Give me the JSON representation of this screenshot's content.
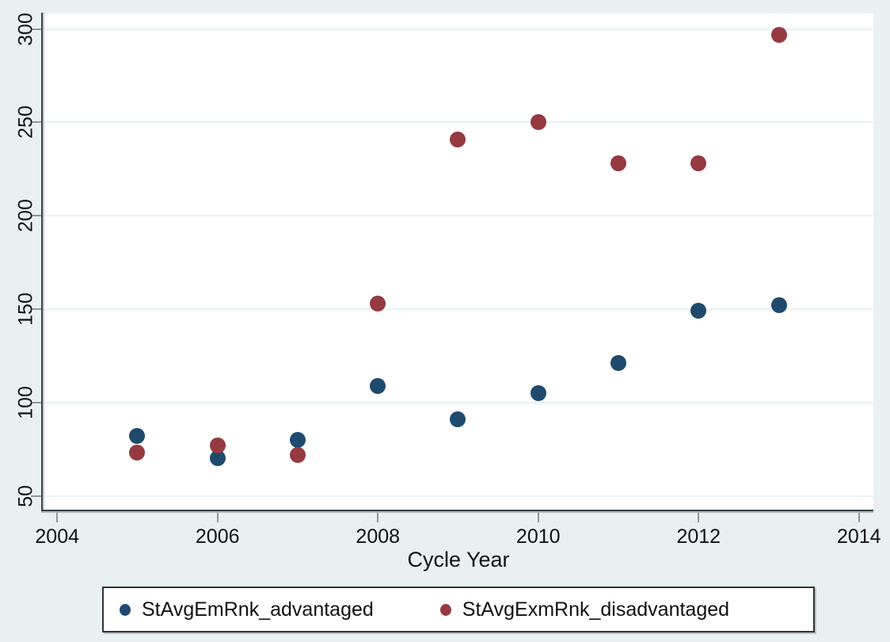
{
  "figure": {
    "background_color": "#e9f0f2",
    "plot_background_color": "#ffffff",
    "gridline_color": "#e8f1f3",
    "axis_color": "#3e4447",
    "tick_color": "#8f9698"
  },
  "chart_data": {
    "type": "scatter",
    "title": "",
    "xlabel": "Cycle Year",
    "ylabel": "",
    "x": [
      2005,
      2006,
      2007,
      2008,
      2009,
      2010,
      2011,
      2012,
      2013
    ],
    "series": [
      {
        "name": "StAvgEmRnk_advantaged",
        "color": "#1f4a6e",
        "values": [
          82,
          70,
          80,
          109,
          91,
          105,
          121,
          149,
          152
        ]
      },
      {
        "name": "StAvgExmRnk_disadvantaged",
        "color": "#943a40",
        "values": [
          73,
          77,
          72,
          153,
          241,
          250,
          228,
          228,
          297
        ]
      }
    ],
    "xticks": [
      2004,
      2006,
      2008,
      2010,
      2012,
      2014
    ],
    "yticks": [
      50,
      100,
      150,
      200,
      250,
      300
    ],
    "xlim": [
      2003.83,
      2014.18
    ],
    "ylim": [
      42.6,
      308.3
    ],
    "grid": "horizontal",
    "legend_position": "bottom"
  }
}
